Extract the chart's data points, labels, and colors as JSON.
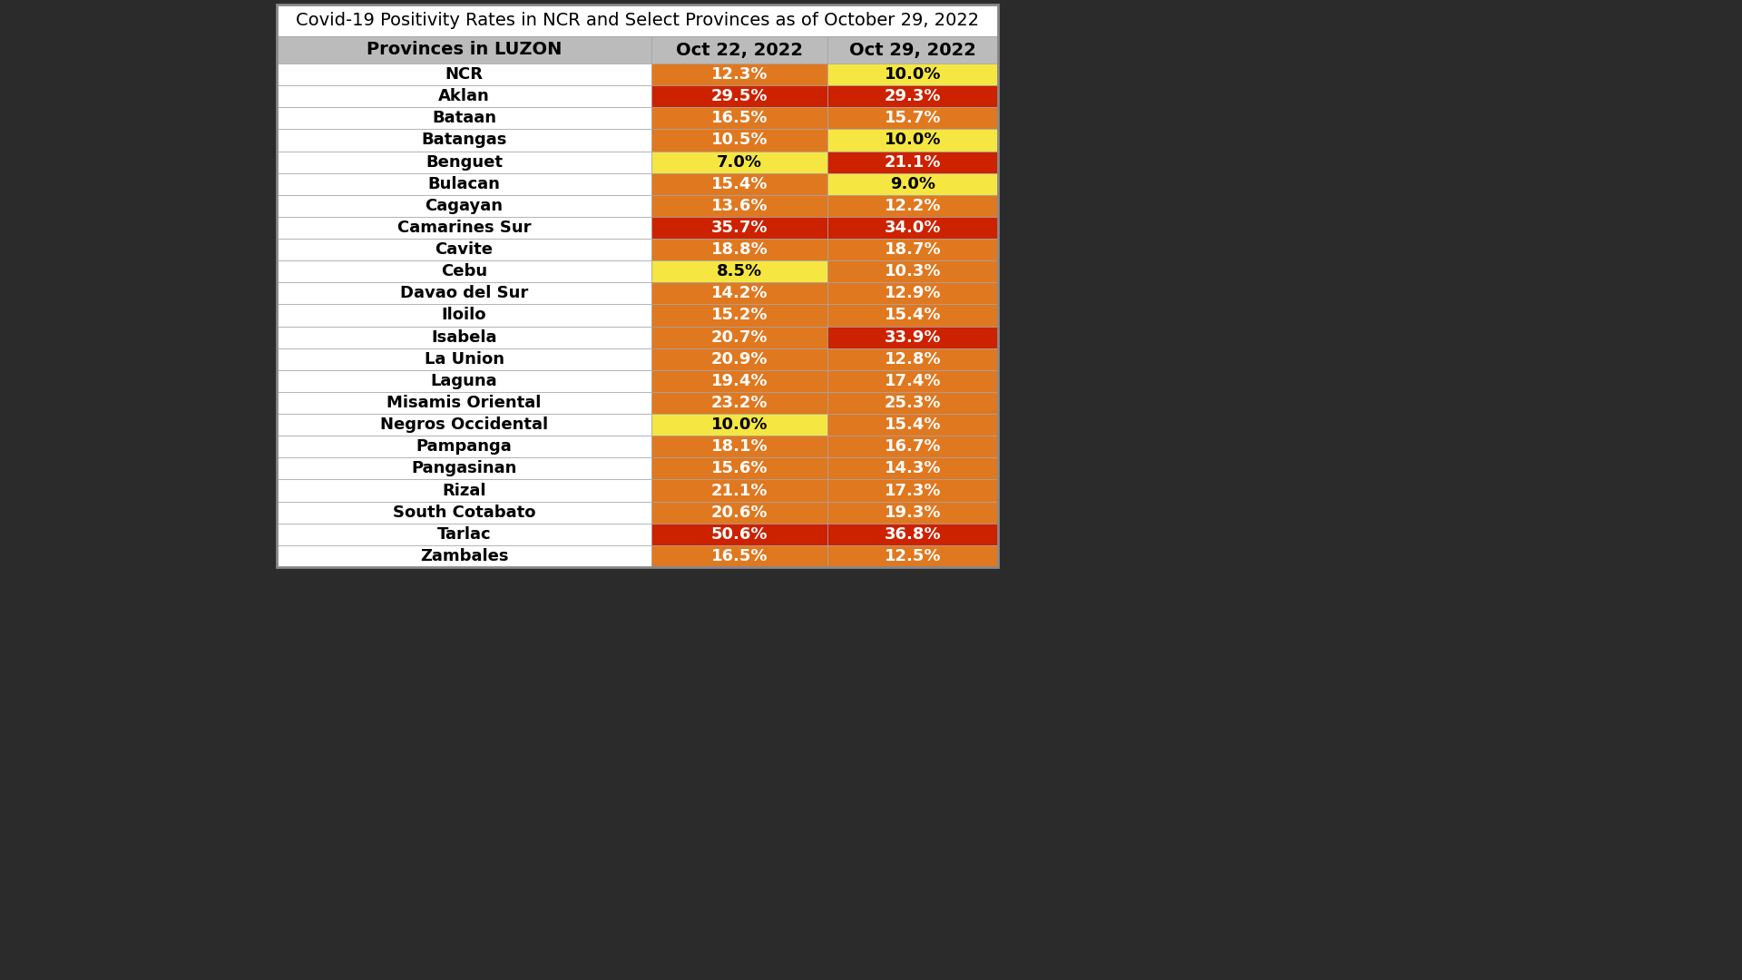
{
  "title": "Covid-19 Positivity Rates in NCR and Select Provinces as of October 29, 2022",
  "header": [
    "Provinces in LUZON",
    "Oct 22, 2022",
    "Oct 29, 2022"
  ],
  "provinces": [
    "NCR",
    "Aklan",
    "Bataan",
    "Batangas",
    "Benguet",
    "Bulacan",
    "Cagayan",
    "Camarines Sur",
    "Cavite",
    "Cebu",
    "Davao del Sur",
    "Iloilo",
    "Isabela",
    "La Union",
    "Laguna",
    "Misamis Oriental",
    "Negros Occidental",
    "Pampanga",
    "Pangasinan",
    "Rizal",
    "South Cotabato",
    "Tarlac",
    "Zambales"
  ],
  "oct22": [
    "12.3%",
    "29.5%",
    "16.5%",
    "10.5%",
    "7.0%",
    "15.4%",
    "13.6%",
    "35.7%",
    "18.8%",
    "8.5%",
    "14.2%",
    "15.2%",
    "20.7%",
    "20.9%",
    "19.4%",
    "23.2%",
    "10.0%",
    "18.1%",
    "15.6%",
    "21.1%",
    "20.6%",
    "50.6%",
    "16.5%"
  ],
  "oct29": [
    "10.0%",
    "29.3%",
    "15.7%",
    "10.0%",
    "21.1%",
    "9.0%",
    "12.2%",
    "34.0%",
    "18.7%",
    "10.3%",
    "12.9%",
    "15.4%",
    "33.9%",
    "12.8%",
    "17.4%",
    "25.3%",
    "15.4%",
    "16.7%",
    "14.3%",
    "17.3%",
    "19.3%",
    "36.8%",
    "12.5%"
  ],
  "oct22_colors": [
    "#E07820",
    "#CC2200",
    "#E07820",
    "#E07820",
    "#F5E642",
    "#E07820",
    "#E07820",
    "#CC2200",
    "#E07820",
    "#F5E642",
    "#E07820",
    "#E07820",
    "#E07820",
    "#E07820",
    "#E07820",
    "#E07820",
    "#F5E642",
    "#E07820",
    "#E07820",
    "#E07820",
    "#E07820",
    "#CC2200",
    "#E07820"
  ],
  "oct29_colors": [
    "#F5E642",
    "#CC2200",
    "#E07820",
    "#F5E642",
    "#CC2200",
    "#F5E642",
    "#E07820",
    "#CC2200",
    "#E07820",
    "#E07820",
    "#E07820",
    "#E07820",
    "#CC2200",
    "#E07820",
    "#E07820",
    "#E07820",
    "#E07820",
    "#E07820",
    "#E07820",
    "#E07820",
    "#E07820",
    "#CC2200",
    "#E07820"
  ],
  "oct22_text_colors": [
    "#FFFFFF",
    "#FFFFFF",
    "#FFFFFF",
    "#FFFFFF",
    "#000000",
    "#FFFFFF",
    "#FFFFFF",
    "#FFFFFF",
    "#FFFFFF",
    "#000000",
    "#FFFFFF",
    "#FFFFFF",
    "#FFFFFF",
    "#FFFFFF",
    "#FFFFFF",
    "#FFFFFF",
    "#000000",
    "#FFFFFF",
    "#FFFFFF",
    "#FFFFFF",
    "#FFFFFF",
    "#FFFFFF",
    "#FFFFFF"
  ],
  "oct29_text_colors": [
    "#000000",
    "#FFFFFF",
    "#FFFFFF",
    "#000000",
    "#FFFFFF",
    "#000000",
    "#FFFFFF",
    "#FFFFFF",
    "#FFFFFF",
    "#FFFFFF",
    "#FFFFFF",
    "#FFFFFF",
    "#FFFFFF",
    "#FFFFFF",
    "#FFFFFF",
    "#FFFFFF",
    "#FFFFFF",
    "#FFFFFF",
    "#FFFFFF",
    "#FFFFFF",
    "#FFFFFF",
    "#FFFFFF",
    "#FFFFFF"
  ],
  "header_bg": "#BBBBBB",
  "border_color": "#AAAAAA",
  "background": "#2B2B2B",
  "table_outer_border": "#888888",
  "title_fontsize": 14,
  "header_fontsize": 14,
  "data_fontsize": 13
}
